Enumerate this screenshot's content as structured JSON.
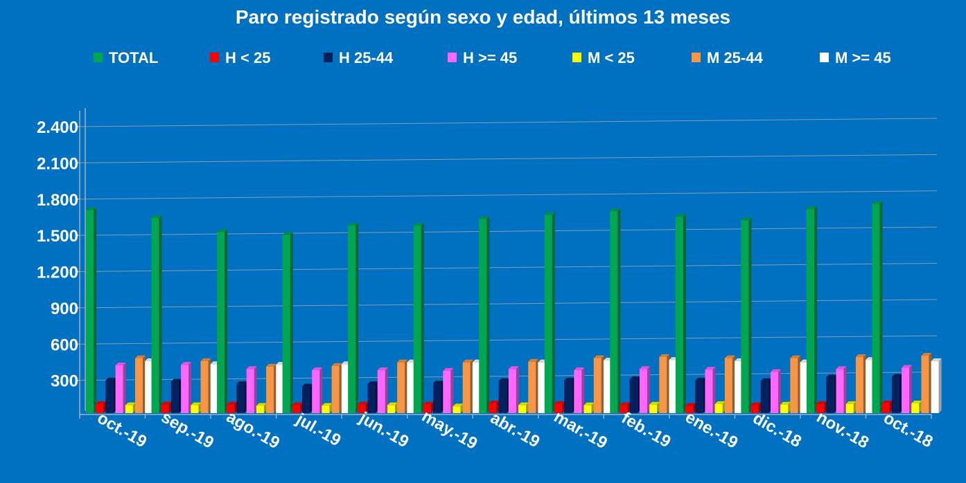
{
  "chart_data": {
    "type": "bar",
    "title": "Paro registrado según sexo y edad, últimos 13 meses",
    "xlabel": "",
    "ylabel": "",
    "ylim": [
      0,
      2400
    ],
    "yticks": [
      "2.400",
      "2.100",
      "1.800",
      "1.500",
      "1.200",
      "900",
      "600",
      "300"
    ],
    "ytick_values": [
      2400,
      2100,
      1800,
      1500,
      1200,
      900,
      600,
      300
    ],
    "grid": true,
    "legend_position": "top",
    "categories": [
      "oct.-19",
      "sep.-19",
      "ago.-19",
      "jul.-19",
      "jun.-19",
      "may.-19",
      "abr.-19",
      "mar.-19",
      "feb.-19",
      "ene.-19",
      "dic.-18",
      "nov.-18",
      "oct.-18"
    ],
    "series": [
      {
        "name": "TOTAL",
        "color": "#00a650",
        "values": [
          1680,
          1615,
          1500,
          1475,
          1550,
          1550,
          1605,
          1640,
          1670,
          1625,
          1595,
          1690,
          1730
        ]
      },
      {
        "name": "H < 25",
        "color": "#ff0000",
        "values": [
          75,
          70,
          70,
          65,
          70,
          70,
          80,
          75,
          65,
          60,
          65,
          75,
          80
        ]
      },
      {
        "name": "H 25-44",
        "color": "#002060",
        "values": [
          270,
          260,
          240,
          220,
          240,
          245,
          265,
          270,
          280,
          270,
          265,
          295,
          300
        ]
      },
      {
        "name": "H >= 45",
        "color": "#ff66ff",
        "values": [
          395,
          400,
          365,
          355,
          355,
          350,
          365,
          355,
          365,
          360,
          340,
          365,
          375
        ]
      },
      {
        "name": "M < 25",
        "color": "#ffff00",
        "values": [
          65,
          65,
          60,
          60,
          65,
          55,
          65,
          65,
          70,
          75,
          70,
          75,
          80
        ]
      },
      {
        "name": "M 25-44",
        "color": "#f79646",
        "values": [
          455,
          430,
          385,
          390,
          420,
          420,
          425,
          455,
          465,
          455,
          455,
          465,
          475
        ]
      },
      {
        "name": "M >= 45",
        "color": "#ffffff",
        "values": [
          430,
          405,
          400,
          405,
          420,
          420,
          420,
          435,
          440,
          430,
          420,
          440,
          430
        ]
      }
    ]
  }
}
